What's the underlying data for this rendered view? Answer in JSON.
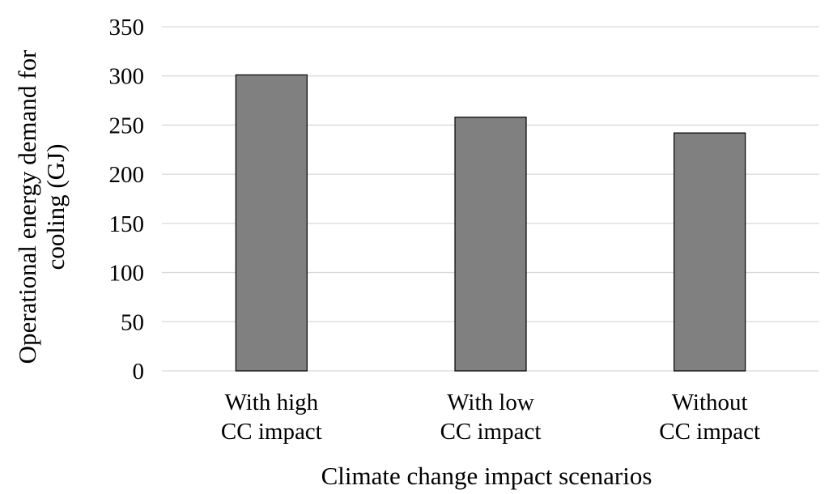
{
  "chart_data": {
    "type": "bar",
    "title": "",
    "xlabel": "Climate change impact scenarios",
    "ylabel_lines": [
      "Operational energy demand for",
      "cooling (GJ)"
    ],
    "categories": [
      [
        "With high",
        "CC impact"
      ],
      [
        "With low",
        "CC impact"
      ],
      [
        "Without",
        "CC impact"
      ]
    ],
    "values": [
      301,
      258,
      242
    ],
    "ylim": [
      0,
      350
    ],
    "yticks": [
      0,
      50,
      100,
      150,
      200,
      250,
      300,
      350
    ],
    "grid": true,
    "legend": "none",
    "bar_color": "#808080"
  }
}
